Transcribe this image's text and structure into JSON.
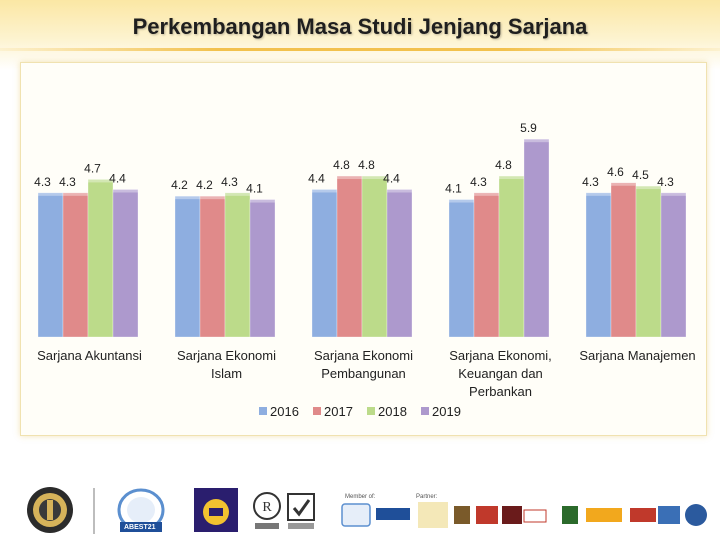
{
  "header": {
    "title": "Perkembangan Masa Studi Jenjang Sarjana"
  },
  "chart_data": {
    "type": "bar",
    "categories": [
      [
        "Sarjana Akuntansi"
      ],
      [
        "Sarjana Ekonomi",
        "Islam"
      ],
      [
        "Sarjana Ekonomi",
        "Pembangunan"
      ],
      [
        "Sarjana Ekonomi,",
        "Keuangan dan",
        "Perbankan"
      ],
      [
        "Sarjana Manajemen"
      ]
    ],
    "series": [
      {
        "name": "2016",
        "color": "#8eaee0",
        "values": [
          4.3,
          4.2,
          4.4,
          4.1,
          4.3
        ]
      },
      {
        "name": "2017",
        "color": "#e08a8a",
        "values": [
          4.3,
          4.2,
          4.8,
          4.3,
          4.6
        ]
      },
      {
        "name": "2018",
        "color": "#bcdb8a",
        "values": [
          4.7,
          4.3,
          4.8,
          4.8,
          4.5
        ]
      },
      {
        "name": "2019",
        "color": "#ad99cd",
        "values": [
          4.4,
          4.1,
          4.4,
          5.9,
          4.3
        ]
      }
    ],
    "data_labels": [
      [
        "4.3",
        "4.3",
        "4.7",
        "4.4"
      ],
      [
        "4.2",
        "4.2",
        "4.3",
        "4.1"
      ],
      [
        "4.4",
        "4.8",
        "4.8",
        "4.4"
      ],
      [
        "4.1",
        "4.3",
        "4.8",
        "5.9"
      ],
      [
        "4.3",
        "4.6",
        "4.5",
        "4.3"
      ]
    ],
    "ylim": [
      0,
      6.8
    ],
    "legend_position": "bottom",
    "grid": false
  },
  "footer": {
    "logos": [
      "university-seal",
      "abest21-logo",
      "ub-logo",
      "certification-mark",
      "accreditation-mark",
      "partner-logos"
    ],
    "abest_text": "ABEST21",
    "member_label": "Member of:",
    "partner_label": "Partner:",
    "partners": [
      "ABEST21",
      "AACSB",
      "VMAP",
      "UiTM",
      "HAGUE",
      "MSU"
    ]
  }
}
